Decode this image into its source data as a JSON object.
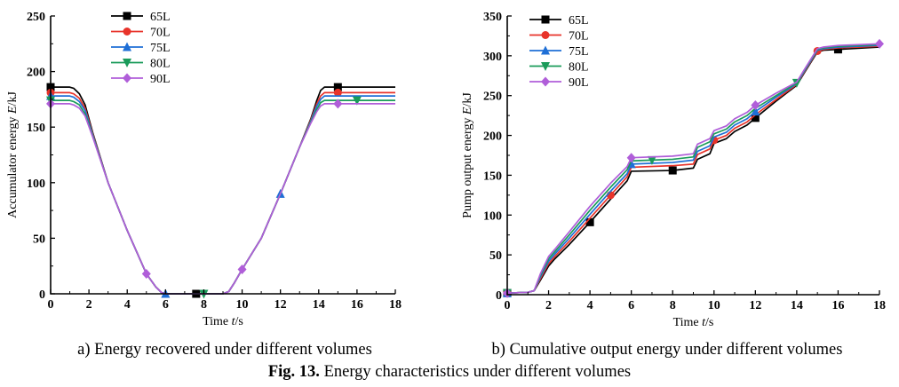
{
  "series_colors": [
    "#000000",
    "#e8332a",
    "#1f6fd6",
    "#1a9b5a",
    "#b05ed9"
  ],
  "chart_data": [
    {
      "type": "line",
      "id": "a",
      "xlabel_prefix": "Time ",
      "xlabel_var": "t",
      "xlabel_unit": "/s",
      "ylabel_prefix": "Accumulator energy ",
      "ylabel_var": "E",
      "ylabel_unit": "/kJ",
      "xlim": [
        0,
        18
      ],
      "ylim": [
        0,
        250
      ],
      "xticks": [
        0,
        2,
        4,
        6,
        8,
        10,
        12,
        14,
        16,
        18
      ],
      "yticks": [
        0,
        50,
        100,
        150,
        200,
        250
      ],
      "legend_position": "top-left",
      "subcaption": "a) Energy recovered under different volumes",
      "series": [
        {
          "name": "65L",
          "marker": "square",
          "marker_x": [
            0,
            7.6,
            15
          ],
          "x": [
            0,
            1.0,
            1.2,
            1.5,
            1.8,
            2.2,
            3,
            4,
            5,
            5.5,
            5.8,
            6.0,
            6.2,
            9.0,
            9.3,
            9.6,
            10,
            11,
            12,
            13,
            13.6,
            13.9,
            14.1,
            14.3,
            14.6,
            18
          ],
          "y": [
            186,
            186,
            185,
            180,
            170,
            145,
            100,
            57,
            18,
            6,
            1,
            0,
            0,
            0,
            2,
            10,
            22,
            50,
            90,
            132,
            158,
            174,
            183,
            186,
            186,
            186
          ]
        },
        {
          "name": "70L",
          "marker": "circle",
          "marker_x": [
            0,
            15
          ],
          "x": [
            0,
            1.0,
            1.2,
            1.5,
            1.8,
            2.2,
            3,
            4,
            5,
            5.5,
            5.8,
            6.0,
            6.2,
            9.0,
            9.3,
            9.6,
            10,
            11,
            12,
            13,
            13.6,
            13.9,
            14.1,
            14.3,
            14.6,
            18
          ],
          "y": [
            181,
            181,
            180,
            176,
            167,
            144,
            100,
            57,
            18,
            6,
            1,
            0,
            0,
            0,
            2,
            10,
            22,
            50,
            90,
            132,
            157,
            171,
            178,
            181,
            181,
            181
          ]
        },
        {
          "name": "75L",
          "marker": "triangle-up",
          "marker_x": [
            0,
            6,
            12
          ],
          "x": [
            0,
            1.0,
            1.2,
            1.5,
            1.8,
            2.2,
            3,
            4,
            5,
            5.5,
            5.8,
            6.0,
            6.2,
            9.0,
            9.3,
            9.6,
            10,
            11,
            12,
            13,
            13.6,
            13.9,
            14.1,
            14.3,
            14.6,
            18
          ],
          "y": [
            178,
            178,
            177,
            173,
            165,
            143,
            100,
            57,
            18,
            6,
            1,
            0,
            0,
            0,
            2,
            10,
            22,
            50,
            90,
            132,
            156,
            169,
            175,
            178,
            178,
            178
          ]
        },
        {
          "name": "80L",
          "marker": "triangle-down",
          "marker_x": [
            0,
            8,
            16
          ],
          "x": [
            0,
            1.0,
            1.2,
            1.5,
            1.8,
            2.2,
            3,
            4,
            5,
            5.5,
            5.8,
            6.0,
            6.2,
            9.0,
            9.3,
            9.6,
            10,
            11,
            12,
            13,
            13.6,
            13.9,
            14.1,
            14.3,
            14.6,
            18
          ],
          "y": [
            174,
            174,
            173,
            170,
            162,
            142,
            100,
            57,
            18,
            6,
            1,
            0,
            0,
            0,
            2,
            10,
            22,
            50,
            90,
            132,
            155,
            166,
            172,
            174,
            174,
            174
          ]
        },
        {
          "name": "90L",
          "marker": "diamond",
          "marker_x": [
            0,
            5,
            10,
            15
          ],
          "x": [
            0,
            1.0,
            1.2,
            1.5,
            1.8,
            2.2,
            3,
            4,
            5,
            5.5,
            5.8,
            6.0,
            6.2,
            9.0,
            9.3,
            9.6,
            10,
            11,
            12,
            13,
            13.6,
            13.9,
            14.1,
            14.3,
            14.6,
            18
          ],
          "y": [
            171,
            171,
            170,
            167,
            160,
            141,
            100,
            57,
            18,
            6,
            1,
            0,
            0,
            0,
            2,
            10,
            22,
            50,
            90,
            132,
            154,
            164,
            169,
            171,
            171,
            171
          ]
        }
      ]
    },
    {
      "type": "line",
      "id": "b",
      "xlabel_prefix": "Time ",
      "xlabel_var": "t",
      "xlabel_unit": "/s",
      "ylabel_prefix": "Pump output energy ",
      "ylabel_var": "E",
      "ylabel_unit": "/kJ",
      "xlim": [
        0,
        18
      ],
      "ylim": [
        0,
        350
      ],
      "xticks": [
        0,
        2,
        4,
        6,
        8,
        10,
        12,
        14,
        16,
        18
      ],
      "yticks": [
        0,
        50,
        100,
        150,
        200,
        250,
        300,
        350
      ],
      "legend_position": "top-left",
      "subcaption": "b) Cumulative output energy under different volumes",
      "series": [
        {
          "name": "65L",
          "marker": "square",
          "marker_x": [
            0,
            4,
            8,
            12,
            16
          ],
          "x": [
            0,
            1.0,
            1.3,
            1.6,
            2.0,
            2.3,
            3,
            4,
            5,
            5.8,
            6.0,
            8,
            9.0,
            9.2,
            9.8,
            10,
            10.6,
            11,
            11.6,
            12,
            13,
            14,
            14.4,
            15,
            15.3,
            16,
            18
          ],
          "y": [
            2,
            3,
            5,
            18,
            36,
            45,
            63,
            91,
            120,
            143,
            155,
            156,
            159,
            170,
            177,
            190,
            196,
            205,
            213,
            222,
            243,
            263,
            280,
            305,
            307,
            308,
            311
          ]
        },
        {
          "name": "70L",
          "marker": "circle",
          "marker_x": [
            0,
            5,
            10,
            15
          ],
          "x": [
            0,
            1.0,
            1.3,
            1.6,
            2.0,
            2.3,
            3,
            4,
            5,
            5.8,
            6.0,
            8,
            9.0,
            9.2,
            9.8,
            10,
            10.6,
            11,
            11.6,
            12,
            13,
            14,
            14.4,
            15,
            15.3,
            16,
            18
          ],
          "y": [
            2,
            3,
            5,
            20,
            39,
            48,
            67,
            96,
            125,
            148,
            160,
            162,
            164,
            176,
            183,
            194,
            200,
            209,
            217,
            226,
            245,
            264,
            281,
            306,
            308,
            310,
            312
          ]
        },
        {
          "name": "75L",
          "marker": "triangle-up",
          "marker_x": [
            0,
            6,
            12
          ],
          "x": [
            0,
            1.0,
            1.3,
            1.6,
            2.0,
            2.3,
            3,
            4,
            5,
            5.8,
            6.0,
            8,
            9.0,
            9.2,
            9.8,
            10,
            10.6,
            11,
            11.6,
            12,
            13,
            14,
            14.4,
            15,
            15.3,
            16,
            18
          ],
          "y": [
            2,
            3,
            5,
            22,
            42,
            51,
            71,
            101,
            130,
            152,
            164,
            166,
            169,
            180,
            187,
            198,
            204,
            213,
            221,
            230,
            248,
            265,
            282,
            307,
            309,
            311,
            313
          ]
        },
        {
          "name": "80L",
          "marker": "triangle-down",
          "marker_x": [
            0,
            7,
            14
          ],
          "x": [
            0,
            1.0,
            1.3,
            1.6,
            2.0,
            2.3,
            3,
            4,
            5,
            5.8,
            6.0,
            8,
            9.0,
            9.2,
            9.8,
            10,
            10.6,
            11,
            11.6,
            12,
            13,
            14,
            14.4,
            15,
            15.3,
            16,
            18
          ],
          "y": [
            2,
            3,
            5,
            24,
            45,
            54,
            75,
            106,
            135,
            157,
            168,
            170,
            173,
            185,
            192,
            202,
            208,
            217,
            225,
            234,
            250,
            266,
            283,
            308,
            310,
            312,
            314
          ]
        },
        {
          "name": "90L",
          "marker": "diamond",
          "marker_x": [
            0,
            6,
            12,
            18
          ],
          "x": [
            0,
            1.0,
            1.3,
            1.6,
            2.0,
            2.3,
            3,
            4,
            5,
            5.8,
            6.0,
            8,
            9.0,
            9.2,
            9.8,
            10,
            10.6,
            11,
            11.6,
            12,
            13,
            14,
            14.4,
            15,
            15.3,
            16,
            18
          ],
          "y": [
            2,
            3,
            5,
            26,
            48,
            57,
            79,
            111,
            140,
            161,
            172,
            174,
            177,
            189,
            196,
            206,
            212,
            221,
            229,
            238,
            253,
            267,
            284,
            309,
            311,
            313,
            315
          ]
        }
      ]
    }
  ],
  "figure_caption": {
    "label": "Fig. 13.",
    "text": " Energy characteristics under different volumes"
  }
}
